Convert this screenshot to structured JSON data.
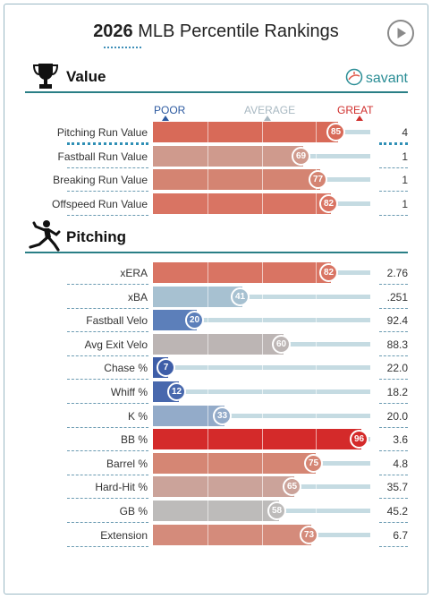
{
  "header": {
    "title_year": "2026",
    "title_rest": "MLB Percentile Rankings"
  },
  "sections": {
    "value": {
      "label": "Value"
    },
    "pitching": {
      "label": "Pitching"
    }
  },
  "brand": {
    "label": "savant"
  },
  "scale": {
    "poor": "POOR",
    "average": "AVERAGE",
    "great": "GREAT"
  },
  "value_rows": [
    {
      "label": "Pitching Run Value",
      "percentile": 85,
      "value": "4",
      "color": "#d86a58"
    },
    {
      "label": "Fastball Run Value",
      "percentile": 69,
      "value": "1",
      "color": "#cf9a8d"
    },
    {
      "label": "Breaking Run Value",
      "percentile": 77,
      "value": "1",
      "color": "#d48472"
    },
    {
      "label": "Offspeed Run Value",
      "percentile": 82,
      "value": "1",
      "color": "#d97463"
    }
  ],
  "pitching_rows": [
    {
      "label": "xERA",
      "percentile": 82,
      "value": "2.76",
      "color": "#d97463"
    },
    {
      "label": "xBA",
      "percentile": 41,
      "value": ".251",
      "color": "#a7c1d1"
    },
    {
      "label": "Fastball Velo",
      "percentile": 20,
      "value": "92.4",
      "color": "#5c7fba"
    },
    {
      "label": "Avg Exit Velo",
      "percentile": 60,
      "value": "88.3",
      "color": "#bcb5b4"
    },
    {
      "label": "Chase %",
      "percentile": 7,
      "value": "22.0",
      "color": "#3e5ea8"
    },
    {
      "label": "Whiff %",
      "percentile": 12,
      "value": "18.2",
      "color": "#4868ad"
    },
    {
      "label": "K %",
      "percentile": 33,
      "value": "20.0",
      "color": "#93abc9"
    },
    {
      "label": "BB %",
      "percentile": 96,
      "value": "3.6",
      "color": "#d42a2a"
    },
    {
      "label": "Barrel %",
      "percentile": 75,
      "value": "4.8",
      "color": "#d58674"
    },
    {
      "label": "Hard-Hit %",
      "percentile": 65,
      "value": "35.7",
      "color": "#cba39a"
    },
    {
      "label": "GB %",
      "percentile": 58,
      "value": "45.2",
      "color": "#bdbbba"
    },
    {
      "label": "Extension",
      "percentile": 73,
      "value": "6.7",
      "color": "#d48b7b"
    }
  ]
}
